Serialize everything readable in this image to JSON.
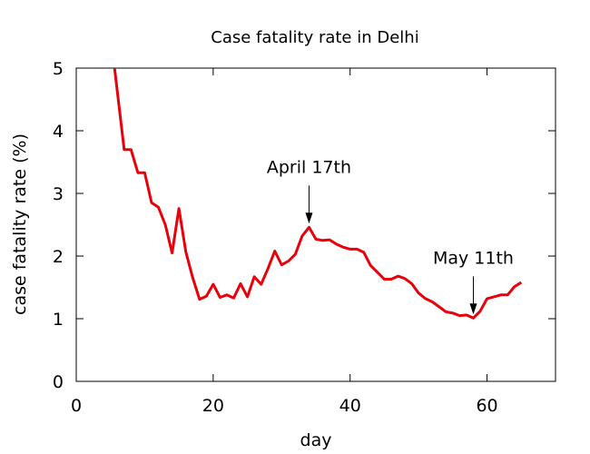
{
  "chart_data": {
    "type": "line",
    "title": "Case fatality rate in Delhi",
    "xlabel": "day",
    "ylabel": "case fatality rate (%)",
    "xlim": [
      0,
      70
    ],
    "ylim": [
      0,
      5
    ],
    "xticks": [
      0,
      20,
      40,
      60
    ],
    "yticks": [
      0,
      1,
      2,
      3,
      4,
      5
    ],
    "grid": false,
    "legend": "none",
    "series": [
      {
        "color": "#e8000b",
        "x": [
          5.6,
          7,
          8,
          9,
          10,
          11,
          12,
          13,
          14,
          15,
          16,
          17,
          18,
          19,
          20,
          21,
          22,
          23,
          24,
          25,
          26,
          27,
          28,
          29,
          30,
          31,
          32,
          33,
          34,
          35,
          36,
          37,
          38,
          39,
          40,
          41,
          42,
          43,
          44,
          45,
          46,
          47,
          48,
          49,
          50,
          51,
          52,
          53,
          54,
          55,
          56,
          57,
          58,
          59,
          60,
          61,
          62,
          63,
          64,
          65
        ],
        "y": [
          5.0,
          3.7,
          3.7,
          3.33,
          3.33,
          2.85,
          2.78,
          2.5,
          2.05,
          2.76,
          2.07,
          1.66,
          1.31,
          1.36,
          1.55,
          1.34,
          1.38,
          1.33,
          1.56,
          1.35,
          1.67,
          1.55,
          1.8,
          2.08,
          1.86,
          1.92,
          2.03,
          2.32,
          2.46,
          2.27,
          2.25,
          2.26,
          2.19,
          2.14,
          2.11,
          2.11,
          2.06,
          1.85,
          1.74,
          1.63,
          1.63,
          1.68,
          1.64,
          1.56,
          1.41,
          1.32,
          1.27,
          1.19,
          1.11,
          1.09,
          1.05,
          1.06,
          1.01,
          1.12,
          1.32,
          1.35,
          1.38,
          1.38,
          1.51,
          1.58
        ]
      }
    ],
    "annotations": [
      {
        "text": "April 17th",
        "x": 34,
        "y": 2.46
      },
      {
        "text": "May 11th",
        "x": 58,
        "y": 1.01
      }
    ]
  }
}
